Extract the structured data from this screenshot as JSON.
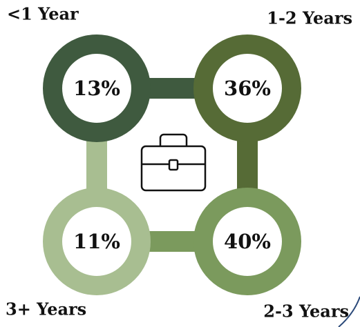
{
  "chart_data": {
    "type": "ring",
    "categories": [
      "<1 Year",
      "1-2 Years",
      "2-3 Years",
      "3+ Years"
    ],
    "values": [
      13,
      36,
      40,
      11
    ],
    "value_labels": [
      "13%",
      "36%",
      "40%",
      "11%"
    ],
    "colors": [
      "#3f5a3f",
      "#566b36",
      "#7b9a5d",
      "#a8be91"
    ]
  }
}
